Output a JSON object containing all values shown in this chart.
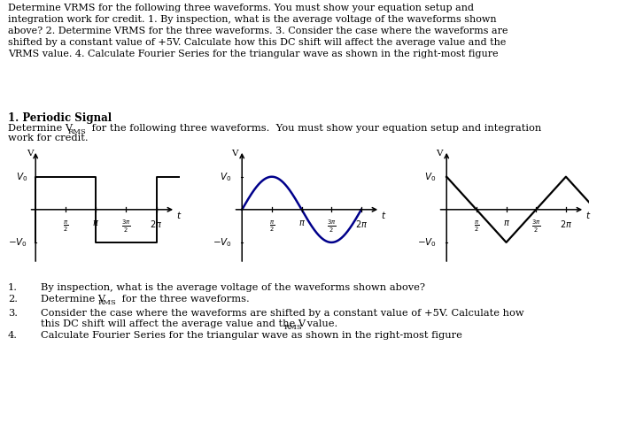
{
  "background_color": "#ffffff",
  "line_color": "#000000",
  "sine_color": "#00008B",
  "top_para": "Determine VRMS for the following three waveforms. You must show your equation setup and\nintegration work for credit. 1. By inspection, what is the average voltage of the waveforms shown\nabove? 2. Determine VRMS for the three waveforms. 3. Consider the case where the waveforms are\nshifted by a constant value of +5V. Calculate how this DC shift will affect the average value and the\nVRMS value. 4. Calculate Fourier Series for the triangular wave as shown in the right-most figure",
  "section_head": "1. Periodic Signal",
  "sub_head1": "Determine V",
  "sub_head_sub": "RMS",
  "sub_head2": " for the following three waveforms.  You must show your equation setup and integration",
  "sub_head3": "work for credit.",
  "b1": "By inspection, what is the average voltage of the waveforms shown above?",
  "b2a": "Determine V",
  "b2b": "RMS",
  "b2c": " for the three waveforms.",
  "b3a": "Consider the case where the waveforms are shifted by a constant value of +5V. Calculate how",
  "b3b": "this DC shift will affect the average value and the V",
  "b3c": "RMS",
  "b3d": " value.",
  "b4": "Calculate Fourier Series for the triangular wave as shown in the right-most figure"
}
